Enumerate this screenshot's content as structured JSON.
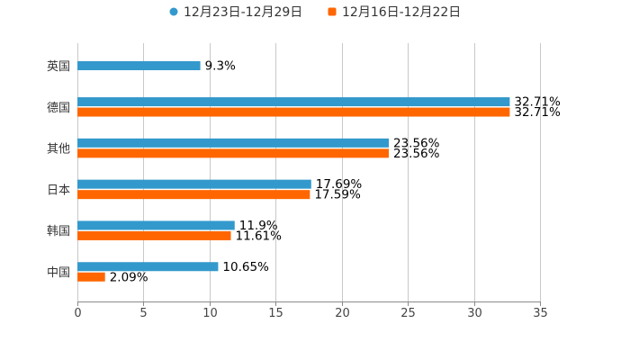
{
  "chart_data": {
    "type": "bar",
    "orientation": "horizontal",
    "categories": [
      "英国",
      "德国",
      "其他",
      "日本",
      "韩国",
      "中国"
    ],
    "series": [
      {
        "name": "12月23日-12月29日",
        "color": "#3399cc",
        "values": [
          9.3,
          32.71,
          23.56,
          17.69,
          11.9,
          10.65
        ],
        "labels": [
          "9.3%",
          "32.71%",
          "23.56%",
          "17.69%",
          "11.9%",
          "10.65%"
        ]
      },
      {
        "name": "12月16日-12月22日",
        "color": "#ff6600",
        "values": [
          null,
          32.71,
          23.56,
          17.59,
          11.61,
          2.09
        ],
        "labels": [
          "",
          "32.71%",
          "23.56%",
          "17.59%",
          "11.61%",
          "2.09%"
        ]
      }
    ],
    "xlim": [
      0,
      35
    ],
    "xticks": [
      0,
      5,
      10,
      15,
      20,
      25,
      30,
      35
    ],
    "xtick_labels": [
      "0",
      "5",
      "10",
      "15",
      "20",
      "25",
      "30",
      "35"
    ],
    "grid": true,
    "legend_position": "top-center",
    "title": "",
    "xlabel": "",
    "ylabel": ""
  }
}
